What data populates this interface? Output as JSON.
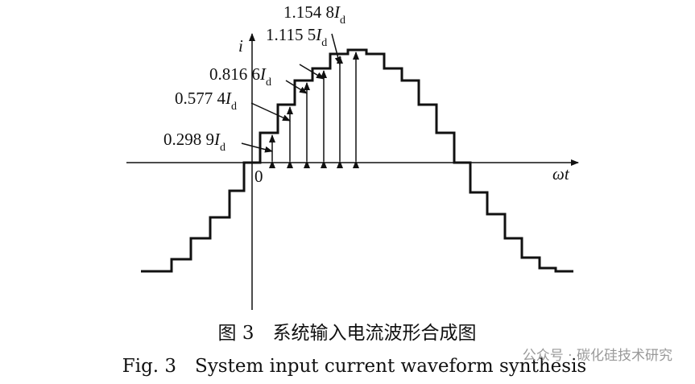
{
  "figure": {
    "axis_y": "i",
    "axis_x": "ωt",
    "origin": "0",
    "labels": [
      {
        "number": "0.298 9",
        "symbol": "I",
        "subscript": "d"
      },
      {
        "number": "0.577 4",
        "symbol": "I",
        "subscript": "d"
      },
      {
        "number": "0.816 6",
        "symbol": "I",
        "subscript": "d"
      },
      {
        "number": "1.115 5",
        "symbol": "I",
        "subscript": "d"
      },
      {
        "number": "1.154 8",
        "symbol": "I",
        "subscript": "d"
      }
    ],
    "caption_cn": "图 3　系统输入电流波形合成图",
    "caption_en": "Fig. 3　System input current waveform synthesis",
    "watermark": "公众号 · 碳化硅技术研究"
  }
}
